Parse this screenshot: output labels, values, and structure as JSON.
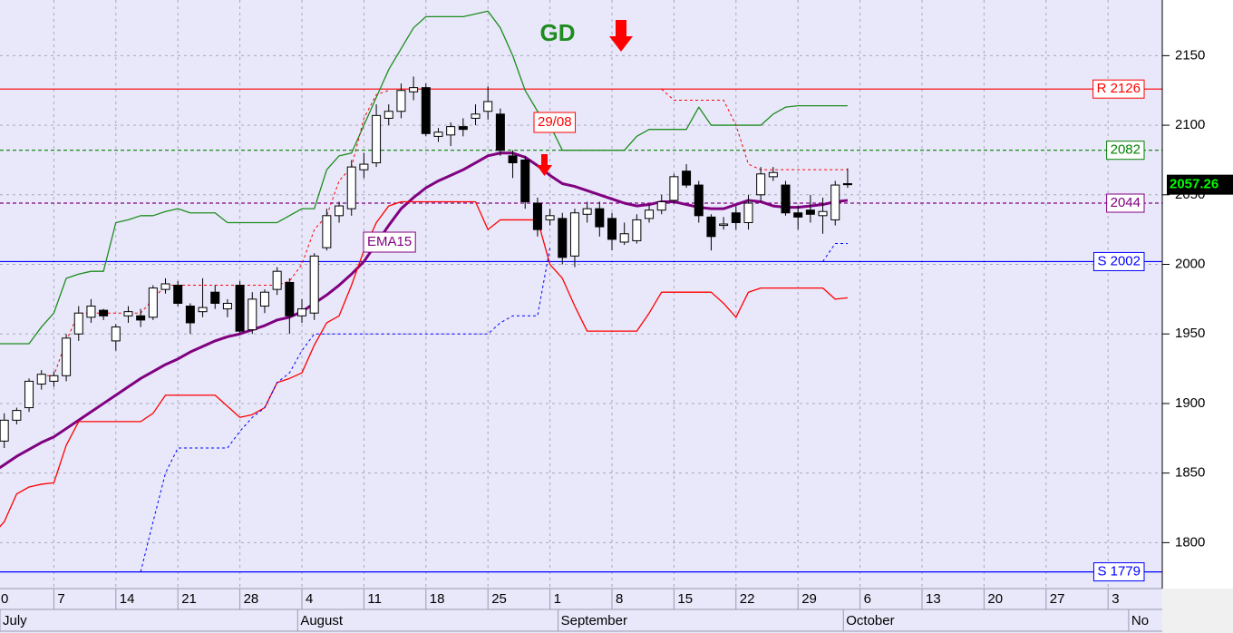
{
  "chart_data": {
    "type": "candlestick",
    "categories": [
      "0",
      null,
      null,
      null,
      null,
      "7",
      null,
      null,
      null,
      null,
      "14",
      null,
      null,
      null,
      null,
      "21",
      null,
      null,
      null,
      null,
      "28",
      null,
      null,
      null,
      null,
      "4",
      null,
      null,
      null,
      null,
      "11",
      null,
      null,
      null,
      null,
      "18",
      null,
      null,
      null,
      null,
      "25",
      null,
      null,
      null,
      null,
      "1",
      null,
      null,
      null,
      null,
      "8",
      null,
      null,
      null,
      null,
      "15",
      null,
      null,
      null,
      null,
      "22",
      null,
      null,
      null,
      null,
      "29",
      null,
      null,
      null,
      null,
      "6",
      null,
      null,
      null,
      null,
      "13",
      null,
      null,
      null,
      null,
      "20",
      null,
      null,
      null,
      null,
      "27",
      null,
      null,
      null,
      null,
      "3",
      null,
      null,
      null,
      null
    ],
    "month_labels": [
      "July",
      null,
      null,
      null,
      null,
      null,
      null,
      null,
      null,
      null,
      null,
      null,
      null,
      null,
      null,
      null,
      null,
      null,
      null,
      null,
      null,
      null,
      null,
      null,
      "August",
      null,
      null,
      null,
      null,
      null,
      null,
      null,
      null,
      null,
      null,
      null,
      null,
      null,
      null,
      null,
      null,
      null,
      null,
      null,
      null,
      "September",
      null,
      null,
      null,
      null,
      null,
      null,
      null,
      null,
      null,
      null,
      null,
      null,
      null,
      null,
      null,
      null,
      null,
      null,
      null,
      null,
      null,
      null,
      "October",
      null,
      null,
      null,
      null,
      null,
      null,
      null,
      null,
      null,
      null,
      null,
      null,
      null,
      null,
      null,
      null,
      null,
      null,
      null,
      null,
      null,
      null,
      "No",
      null,
      null,
      null,
      null
    ],
    "candles": {
      "up_color": "#ffffff",
      "down_color": "#000000",
      "open": [
        null,
        1873,
        1888,
        1897,
        1914,
        1916,
        1920,
        1950,
        1962,
        1967,
        1945,
        1963,
        1963,
        1962,
        1982,
        1985,
        1970,
        1966,
        1980,
        1968,
        1985,
        1953,
        1970,
        1982,
        1987,
        1963,
        1965,
        2012,
        2035,
        2040,
        2068,
        2073,
        2105,
        2110,
        2124,
        2127,
        2092,
        2093,
        2099,
        2105,
        2110,
        2108,
        2078,
        2075,
        2044,
        2032,
        2033,
        2006,
        2036,
        2040,
        2033,
        2016,
        2017,
        2033,
        2039,
        2046,
        2067,
        2057,
        2034,
        2028,
        2037,
        2030,
        2050,
        2063,
        2057,
        2037,
        2039,
        2035,
        2032,
        2058,
        null,
        null,
        null,
        null,
        null,
        null,
        null,
        null,
        null,
        null,
        null,
        null,
        null,
        null,
        null,
        null,
        null,
        null,
        null,
        null,
        null,
        null,
        null,
        null,
        null
      ],
      "high": [
        null,
        1893,
        1897,
        1918,
        1924,
        1923,
        1950,
        1970,
        1975,
        1968,
        1957,
        1970,
        1968,
        1985,
        1990,
        1988,
        1972,
        1990,
        1985,
        1975,
        1988,
        1980,
        1982,
        1998,
        1990,
        1975,
        2008,
        2040,
        2045,
        2075,
        2080,
        2115,
        2115,
        2130,
        2135,
        2130,
        2098,
        2102,
        2105,
        2115,
        2128,
        2112,
        2082,
        2078,
        2048,
        2040,
        2037,
        2040,
        2045,
        2045,
        2037,
        2030,
        2036,
        2043,
        2050,
        2065,
        2072,
        2060,
        2036,
        2034,
        2042,
        2050,
        2070,
        2070,
        2060,
        2042,
        2050,
        2048,
        2060,
        2069,
        null,
        null,
        null,
        null,
        null,
        null,
        null,
        null,
        null,
        null,
        null,
        null,
        null,
        null,
        null,
        null,
        null,
        null,
        null,
        null,
        null,
        null,
        null,
        null,
        null
      ],
      "low": [
        null,
        1868,
        1885,
        1894,
        1910,
        1912,
        1916,
        1945,
        1958,
        1960,
        1938,
        1958,
        1955,
        1960,
        1979,
        1970,
        1950,
        1962,
        1968,
        1962,
        1950,
        1950,
        1965,
        1978,
        1950,
        1958,
        1960,
        2010,
        2030,
        2035,
        2062,
        2070,
        2100,
        2105,
        2118,
        2092,
        2088,
        2085,
        2092,
        2100,
        2104,
        2078,
        2062,
        2040,
        2020,
        2028,
        2000,
        1998,
        2030,
        2020,
        2010,
        2014,
        2015,
        2030,
        2036,
        2044,
        2055,
        2030,
        2010,
        2025,
        2025,
        2025,
        2045,
        2060,
        2035,
        2025,
        2030,
        2022,
        2028,
        2055,
        null,
        null,
        null,
        null,
        null,
        null,
        null,
        null,
        null,
        null,
        null,
        null,
        null,
        null,
        null,
        null,
        null,
        null,
        null,
        null,
        null,
        null,
        null,
        null,
        null
      ],
      "close": [
        null,
        1888,
        1895,
        1916,
        1921,
        1920,
        1947,
        1965,
        1970,
        1963,
        1955,
        1966,
        1960,
        1983,
        1986,
        1972,
        1958,
        1969,
        1972,
        1972,
        1952,
        1975,
        1980,
        1995,
        1963,
        1968,
        2006,
        2035,
        2042,
        2070,
        2072,
        2107,
        2110,
        2125,
        2127,
        2094,
        2095,
        2099,
        2097,
        2108,
        2117,
        2082,
        2073,
        2045,
        2025,
        2035,
        2005,
        2037,
        2040,
        2027,
        2018,
        2022,
        2032,
        2039,
        2045,
        2063,
        2057,
        2035,
        2020,
        2029,
        2030,
        2044,
        2065,
        2066,
        2037,
        2034,
        2036,
        2038,
        2057,
        2057.26,
        null,
        null,
        null,
        null,
        null,
        null,
        null,
        null,
        null,
        null,
        null,
        null,
        null,
        null,
        null,
        null,
        null,
        null,
        null,
        null,
        null,
        null,
        null,
        null,
        null
      ]
    },
    "series": [
      {
        "name": "EMA15",
        "color": "#800080",
        "style": "solid",
        "width": 3,
        "values": [
          1850,
          1856,
          1862,
          1867,
          1872,
          1876,
          1882,
          1888,
          1894,
          1900,
          1906,
          1912,
          1918,
          1923,
          1928,
          1932,
          1937,
          1941,
          1945,
          1948,
          1950,
          1953,
          1956,
          1960,
          1962,
          1966,
          1972,
          1978,
          1985,
          1993,
          2002,
          2015,
          2028,
          2040,
          2048,
          2055,
          2060,
          2064,
          2068,
          2073,
          2078,
          2080,
          2080,
          2077,
          2071,
          2064,
          2058,
          2056,
          2053,
          2050,
          2047,
          2044,
          2042,
          2043,
          2045,
          2045,
          2043,
          2041,
          2040,
          2040,
          2043,
          2046,
          2045,
          2042,
          2041,
          2041,
          2042,
          2043,
          2045,
          2046,
          null,
          null,
          null,
          null,
          null,
          null,
          null,
          null,
          null,
          null,
          null,
          null,
          null,
          null,
          null,
          null,
          null,
          null,
          null,
          null,
          null,
          null,
          null,
          null,
          null
        ]
      },
      {
        "color": "#1e8c1e",
        "style": "solid",
        "width": 1.3,
        "values": [
          1943,
          1943,
          1943,
          1943,
          1955,
          1965,
          1990,
          1993,
          1995,
          1995,
          2030,
          2032,
          2035,
          2035,
          2038,
          2040,
          2037,
          2037,
          2037,
          2030,
          2030,
          2030,
          2030,
          2030,
          2035,
          2040,
          2040,
          2068,
          2078,
          2080,
          2100,
          2120,
          2140,
          2155,
          2170,
          2178,
          2178,
          2178,
          2178,
          2180,
          2182,
          2170,
          2150,
          2125,
          2110,
          2100,
          2082,
          2082,
          2082,
          2082,
          2082,
          2082,
          2092,
          2097,
          2097,
          2097,
          2097,
          2113,
          2100,
          2100,
          2100,
          2100,
          2100,
          2108,
          2113,
          2114,
          2114,
          2114,
          2114,
          2114,
          null,
          null,
          null,
          null,
          null,
          null,
          null,
          null,
          null,
          null,
          null,
          null,
          null,
          null,
          null,
          null,
          null,
          null,
          null,
          null,
          null,
          null,
          null,
          null,
          null
        ]
      },
      {
        "color": "#ff0000",
        "style": "solid",
        "width": 1.3,
        "values": [
          1805,
          1815,
          1835,
          1840,
          1842,
          1843,
          1870,
          1887,
          1887,
          1887,
          1887,
          1887,
          1887,
          1893,
          1906,
          1906,
          1906,
          1906,
          1906,
          1898,
          1890,
          1892,
          1897,
          1915,
          1918,
          1922,
          1942,
          1958,
          1963,
          1985,
          2010,
          2030,
          2042,
          2045,
          2045,
          2045,
          2045,
          2045,
          2045,
          2045,
          2025,
          2032,
          2032,
          2032,
          2032,
          2000,
          1990,
          1970,
          1952,
          1952,
          1952,
          1952,
          1952,
          1965,
          1980,
          1980,
          1980,
          1980,
          1980,
          1972,
          1962,
          1980,
          1983,
          1983,
          1983,
          1983,
          1983,
          1983,
          1975,
          1976,
          null,
          null,
          null,
          null,
          null,
          null,
          null,
          null,
          null,
          null,
          null,
          null,
          null,
          null,
          null,
          null,
          null,
          null,
          null,
          null,
          null,
          null,
          null,
          null,
          null
        ]
      },
      {
        "color": "#ff0000",
        "style": "dashed",
        "width": 1,
        "values": [
          null,
          null,
          null,
          null,
          1920,
          1920,
          1945,
          1965,
          1965,
          1965,
          1965,
          1965,
          1965,
          1975,
          1985,
          1985,
          1985,
          1985,
          1985,
          1985,
          1985,
          1985,
          1985,
          1985,
          1988,
          2000,
          2025,
          2035,
          2060,
          2070,
          2105,
          2122,
          2125,
          null,
          null,
          null,
          null,
          null,
          null,
          null,
          null,
          null,
          null,
          null,
          null,
          null,
          null,
          null,
          null,
          null,
          null,
          null,
          null,
          null,
          2126,
          2118,
          2118,
          2118,
          2118,
          2118,
          2100,
          2072,
          2068,
          2068,
          2068,
          2068,
          2068,
          2068,
          2068,
          2068,
          null,
          null,
          null,
          null,
          null,
          null,
          null,
          null,
          null,
          null,
          null,
          null,
          null,
          null,
          null,
          null,
          null,
          null,
          null,
          null,
          null,
          null,
          null,
          null,
          null
        ]
      },
      {
        "color": "#0000ff",
        "style": "dashed",
        "width": 1,
        "values": [
          null,
          null,
          null,
          null,
          null,
          null,
          null,
          null,
          null,
          null,
          null,
          null,
          1779,
          1815,
          1850,
          1868,
          1868,
          1868,
          1868,
          1868,
          1880,
          1890,
          1897,
          1915,
          1922,
          1938,
          1950,
          1950,
          1950,
          1950,
          1950,
          1950,
          1950,
          1950,
          1950,
          1950,
          1950,
          1950,
          1950,
          1950,
          1950,
          1958,
          1963,
          1963,
          1963,
          2012,
          null,
          null,
          null,
          null,
          null,
          null,
          null,
          null,
          null,
          null,
          null,
          null,
          null,
          null,
          null,
          null,
          null,
          null,
          null,
          null,
          null,
          2002,
          2015,
          2015,
          null,
          null,
          null,
          null,
          null,
          null,
          null,
          null,
          null,
          null,
          null,
          null,
          null,
          null,
          null,
          null,
          null,
          null,
          null,
          null,
          null,
          null,
          null,
          null,
          null
        ]
      }
    ],
    "reference_lines": [
      {
        "value": 2126,
        "label": "R 2126",
        "color": "#ff0000",
        "style": "solid"
      },
      {
        "value": 2082,
        "color": "#008000",
        "style": "dashed"
      },
      {
        "value": 2044,
        "color": "#800080",
        "style": "dashed"
      },
      {
        "value": 2002,
        "label": "S 2002",
        "color": "#0000ff",
        "style": "solid"
      },
      {
        "value": 1779,
        "label": "S 1779",
        "color": "#0000ff",
        "style": "solid"
      }
    ],
    "last_price": {
      "value": 2057.26,
      "color": "#00ff00",
      "background": "#000000"
    },
    "annotations": [
      {
        "text": "GD",
        "color": "#1e8c1e"
      },
      {
        "text": "29/08",
        "color": "#ff0000"
      }
    ],
    "ylim": [
      1767,
      2190
    ],
    "yticks": [
      1800,
      1850,
      1900,
      1950,
      2000,
      2050,
      2100,
      2150
    ],
    "grid": true,
    "background": "#e8e8fa"
  }
}
